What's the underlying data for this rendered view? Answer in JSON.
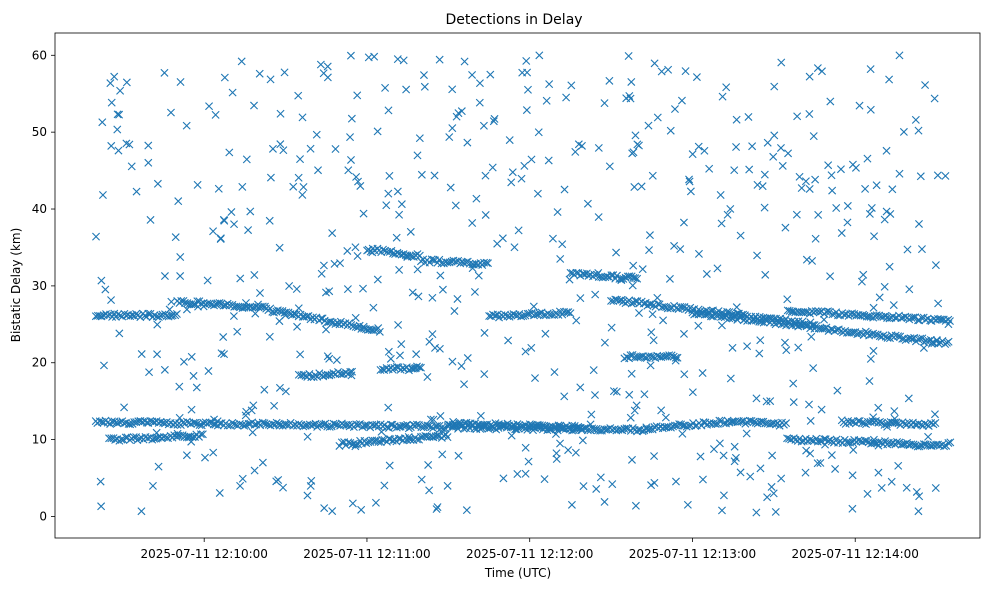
{
  "chart_data": {
    "type": "scatter",
    "title": "Detections in Delay",
    "xlabel": "Time (UTC)",
    "ylabel": "Bistatic Delay (km)",
    "x_ticks": [
      "2025-07-11 12:10:00",
      "2025-07-11 12:11:00",
      "2025-07-11 12:12:00",
      "2025-07-11 12:13:00",
      "2025-07-11 12:14:00"
    ],
    "y_ticks": [
      "0",
      "10",
      "20",
      "30",
      "40",
      "50",
      "60"
    ],
    "xlim": [
      "2025-07-11 12:09:05",
      "2025-07-11 12:14:46"
    ],
    "ylim": [
      -2.8,
      62.9
    ],
    "marker": "x",
    "color": "#1f77b4",
    "grid": false,
    "tracks": [
      {
        "t": [
          "12:09:20",
          "12:09:50"
        ],
        "delay": [
          26.2,
          26.1
        ]
      },
      {
        "t": [
          "12:09:50",
          "12:10:25"
        ],
        "delay": [
          28.0,
          27.0
        ]
      },
      {
        "t": [
          "12:10:25",
          "12:11:05"
        ],
        "delay": [
          26.8,
          24.2
        ]
      },
      {
        "t": [
          "12:11:00",
          "12:11:15"
        ],
        "delay": [
          34.8,
          34.0
        ]
      },
      {
        "t": [
          "12:11:15",
          "12:11:20"
        ],
        "delay": [
          34.0,
          34.0
        ]
      },
      {
        "t": [
          "12:11:20",
          "12:11:45"
        ],
        "delay": [
          33.3,
          32.8
        ]
      },
      {
        "t": [
          "12:11:45",
          "12:12:15"
        ],
        "delay": [
          26.0,
          26.5
        ]
      },
      {
        "t": [
          "12:12:15",
          "12:12:40"
        ],
        "delay": [
          31.5,
          31.0
        ]
      },
      {
        "t": [
          "12:12:30",
          "12:13:45"
        ],
        "delay": [
          28.2,
          25.0
        ]
      },
      {
        "t": [
          "12:13:00",
          "12:14:35"
        ],
        "delay": [
          26.5,
          22.5
        ]
      },
      {
        "t": [
          "12:13:35",
          "12:14:35"
        ],
        "delay": [
          26.8,
          25.5
        ]
      },
      {
        "t": [
          "12:09:20",
          "12:12:40"
        ],
        "delay": [
          12.3,
          11.3
        ]
      },
      {
        "t": [
          "12:09:25",
          "12:10:00"
        ],
        "delay": [
          10.0,
          10.5
        ]
      },
      {
        "t": [
          "12:10:50",
          "12:11:30"
        ],
        "delay": [
          9.4,
          10.5
        ]
      },
      {
        "t": [
          "12:11:30",
          "12:12:20"
        ],
        "delay": [
          12.1,
          11.6
        ]
      },
      {
        "t": [
          "12:12:40",
          "12:13:15"
        ],
        "delay": [
          11.3,
          12.4
        ]
      },
      {
        "t": [
          "12:13:15",
          "12:13:35"
        ],
        "delay": [
          12.4,
          12.0
        ]
      },
      {
        "t": [
          "12:13:35",
          "12:14:20"
        ],
        "delay": [
          10.0,
          9.5
        ]
      },
      {
        "t": [
          "12:13:55",
          "12:14:30"
        ],
        "delay": [
          12.3,
          12.0
        ]
      },
      {
        "t": [
          "12:14:20",
          "12:14:35"
        ],
        "delay": [
          9.3,
          9.4
        ]
      },
      {
        "t": [
          "12:10:35",
          "12:10:55"
        ],
        "delay": [
          18.2,
          18.8
        ]
      },
      {
        "t": [
          "12:11:05",
          "12:11:20"
        ],
        "delay": [
          19.2,
          19.3
        ]
      },
      {
        "t": [
          "12:12:35",
          "12:12:55"
        ],
        "delay": [
          20.8,
          20.8
        ]
      }
    ],
    "scatter_seed": 1234,
    "scatter_count": 620
  }
}
